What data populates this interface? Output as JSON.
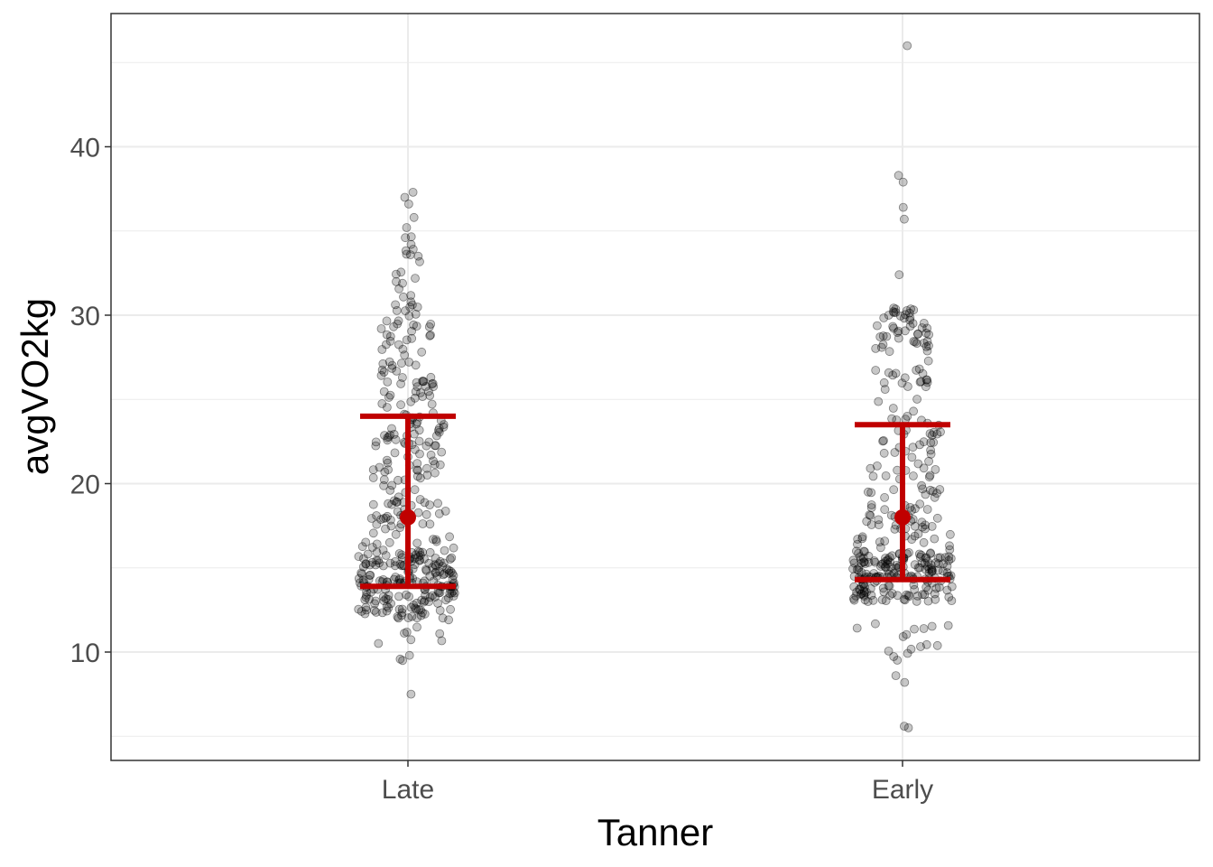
{
  "chart_data": {
    "type": "scatter",
    "subtype": "jittered strip plot with median and IQR error bars",
    "xlabel": "Tanner",
    "ylabel": "avgVO2kg",
    "categories": [
      "Late",
      "Early"
    ],
    "ylim": [
      3.5,
      48
    ],
    "yticks": [
      10,
      20,
      30,
      40
    ],
    "grid": true,
    "legend": "none",
    "colors": {
      "points": "#000000",
      "summary": "#c00000",
      "grid": "#ebebeb",
      "panel_border": "#333333"
    },
    "summary": [
      {
        "category": "Late",
        "median": 18.0,
        "lower": 13.9,
        "upper": 24.0
      },
      {
        "category": "Early",
        "median": 18.0,
        "lower": 14.3,
        "upper": 23.5
      }
    ],
    "distribution_notes": [
      {
        "category": "Late",
        "n_points": 420,
        "min": 7.5,
        "max": 37.3,
        "dense_region": [
          12,
          16
        ]
      },
      {
        "category": "Early",
        "n_points": 380,
        "min": 5.5,
        "max": 46.0,
        "dense_region": [
          13,
          16
        ]
      }
    ]
  }
}
